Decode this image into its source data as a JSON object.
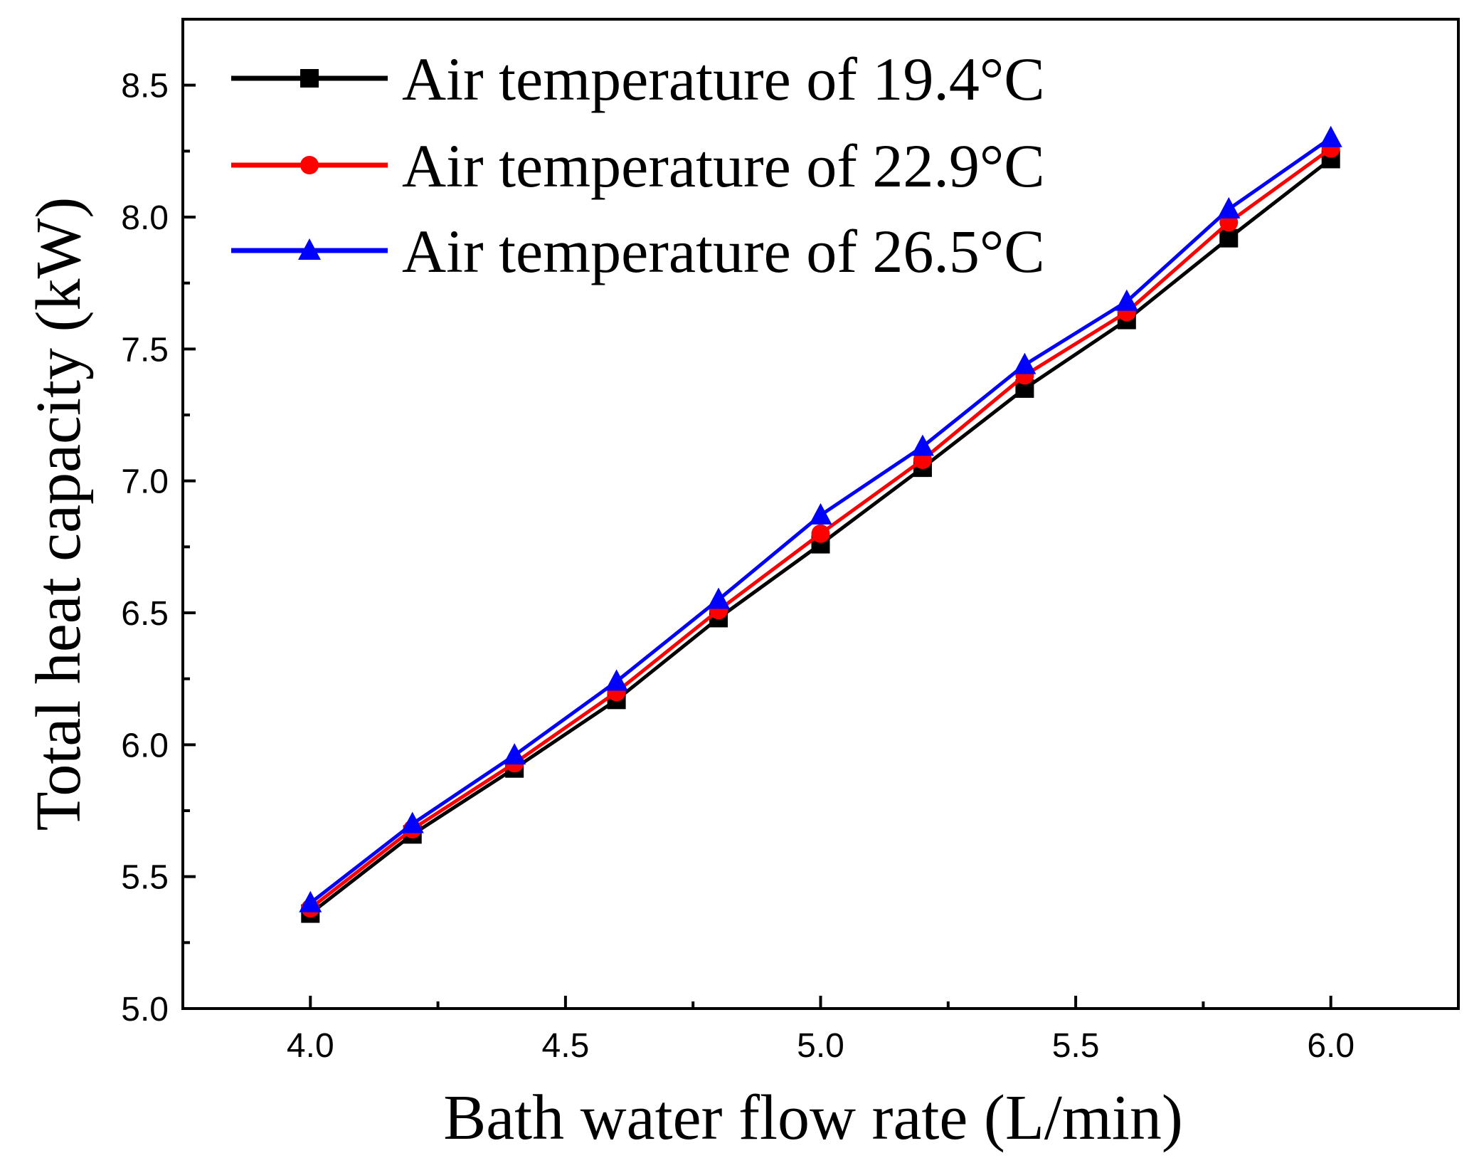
{
  "chart_data": {
    "type": "line",
    "xlabel": "Bath water flow rate (L/min)",
    "ylabel": "Total heat capacity (kW)",
    "xlim": [
      3.75,
      6.25
    ],
    "ylim": [
      5.0,
      8.75
    ],
    "x_ticks": [
      4.0,
      4.5,
      5.0,
      5.5,
      6.0
    ],
    "x_tick_labels": [
      "4.0",
      "4.5",
      "5.0",
      "5.5",
      "6.0"
    ],
    "y_ticks": [
      5.0,
      5.5,
      6.0,
      6.5,
      7.0,
      7.5,
      8.0,
      8.5
    ],
    "y_tick_labels": [
      "5.0",
      "5.5",
      "6.0",
      "6.5",
      "7.0",
      "7.5",
      "8.0",
      "8.5"
    ],
    "legend_position": "top-left",
    "x": [
      4.0,
      4.2,
      4.4,
      4.6,
      4.8,
      5.0,
      5.2,
      5.4,
      5.6,
      5.8,
      6.0
    ],
    "series": [
      {
        "name": "Air temperature of 19.4°C",
        "color": "#000000",
        "marker": "square",
        "values": [
          5.36,
          5.66,
          5.91,
          6.17,
          6.48,
          6.76,
          7.05,
          7.35,
          7.61,
          7.92,
          8.22
        ]
      },
      {
        "name": "Air temperature of 22.9°C",
        "color": "#ff0000",
        "marker": "circle",
        "values": [
          5.38,
          5.68,
          5.93,
          6.2,
          6.51,
          6.8,
          7.08,
          7.4,
          7.64,
          7.98,
          8.26
        ]
      },
      {
        "name": "Air temperature of 26.5°C",
        "color": "#0000ff",
        "marker": "triangle",
        "values": [
          5.4,
          5.7,
          5.96,
          6.24,
          6.55,
          6.87,
          7.13,
          7.44,
          7.68,
          8.03,
          8.3
        ]
      }
    ]
  }
}
